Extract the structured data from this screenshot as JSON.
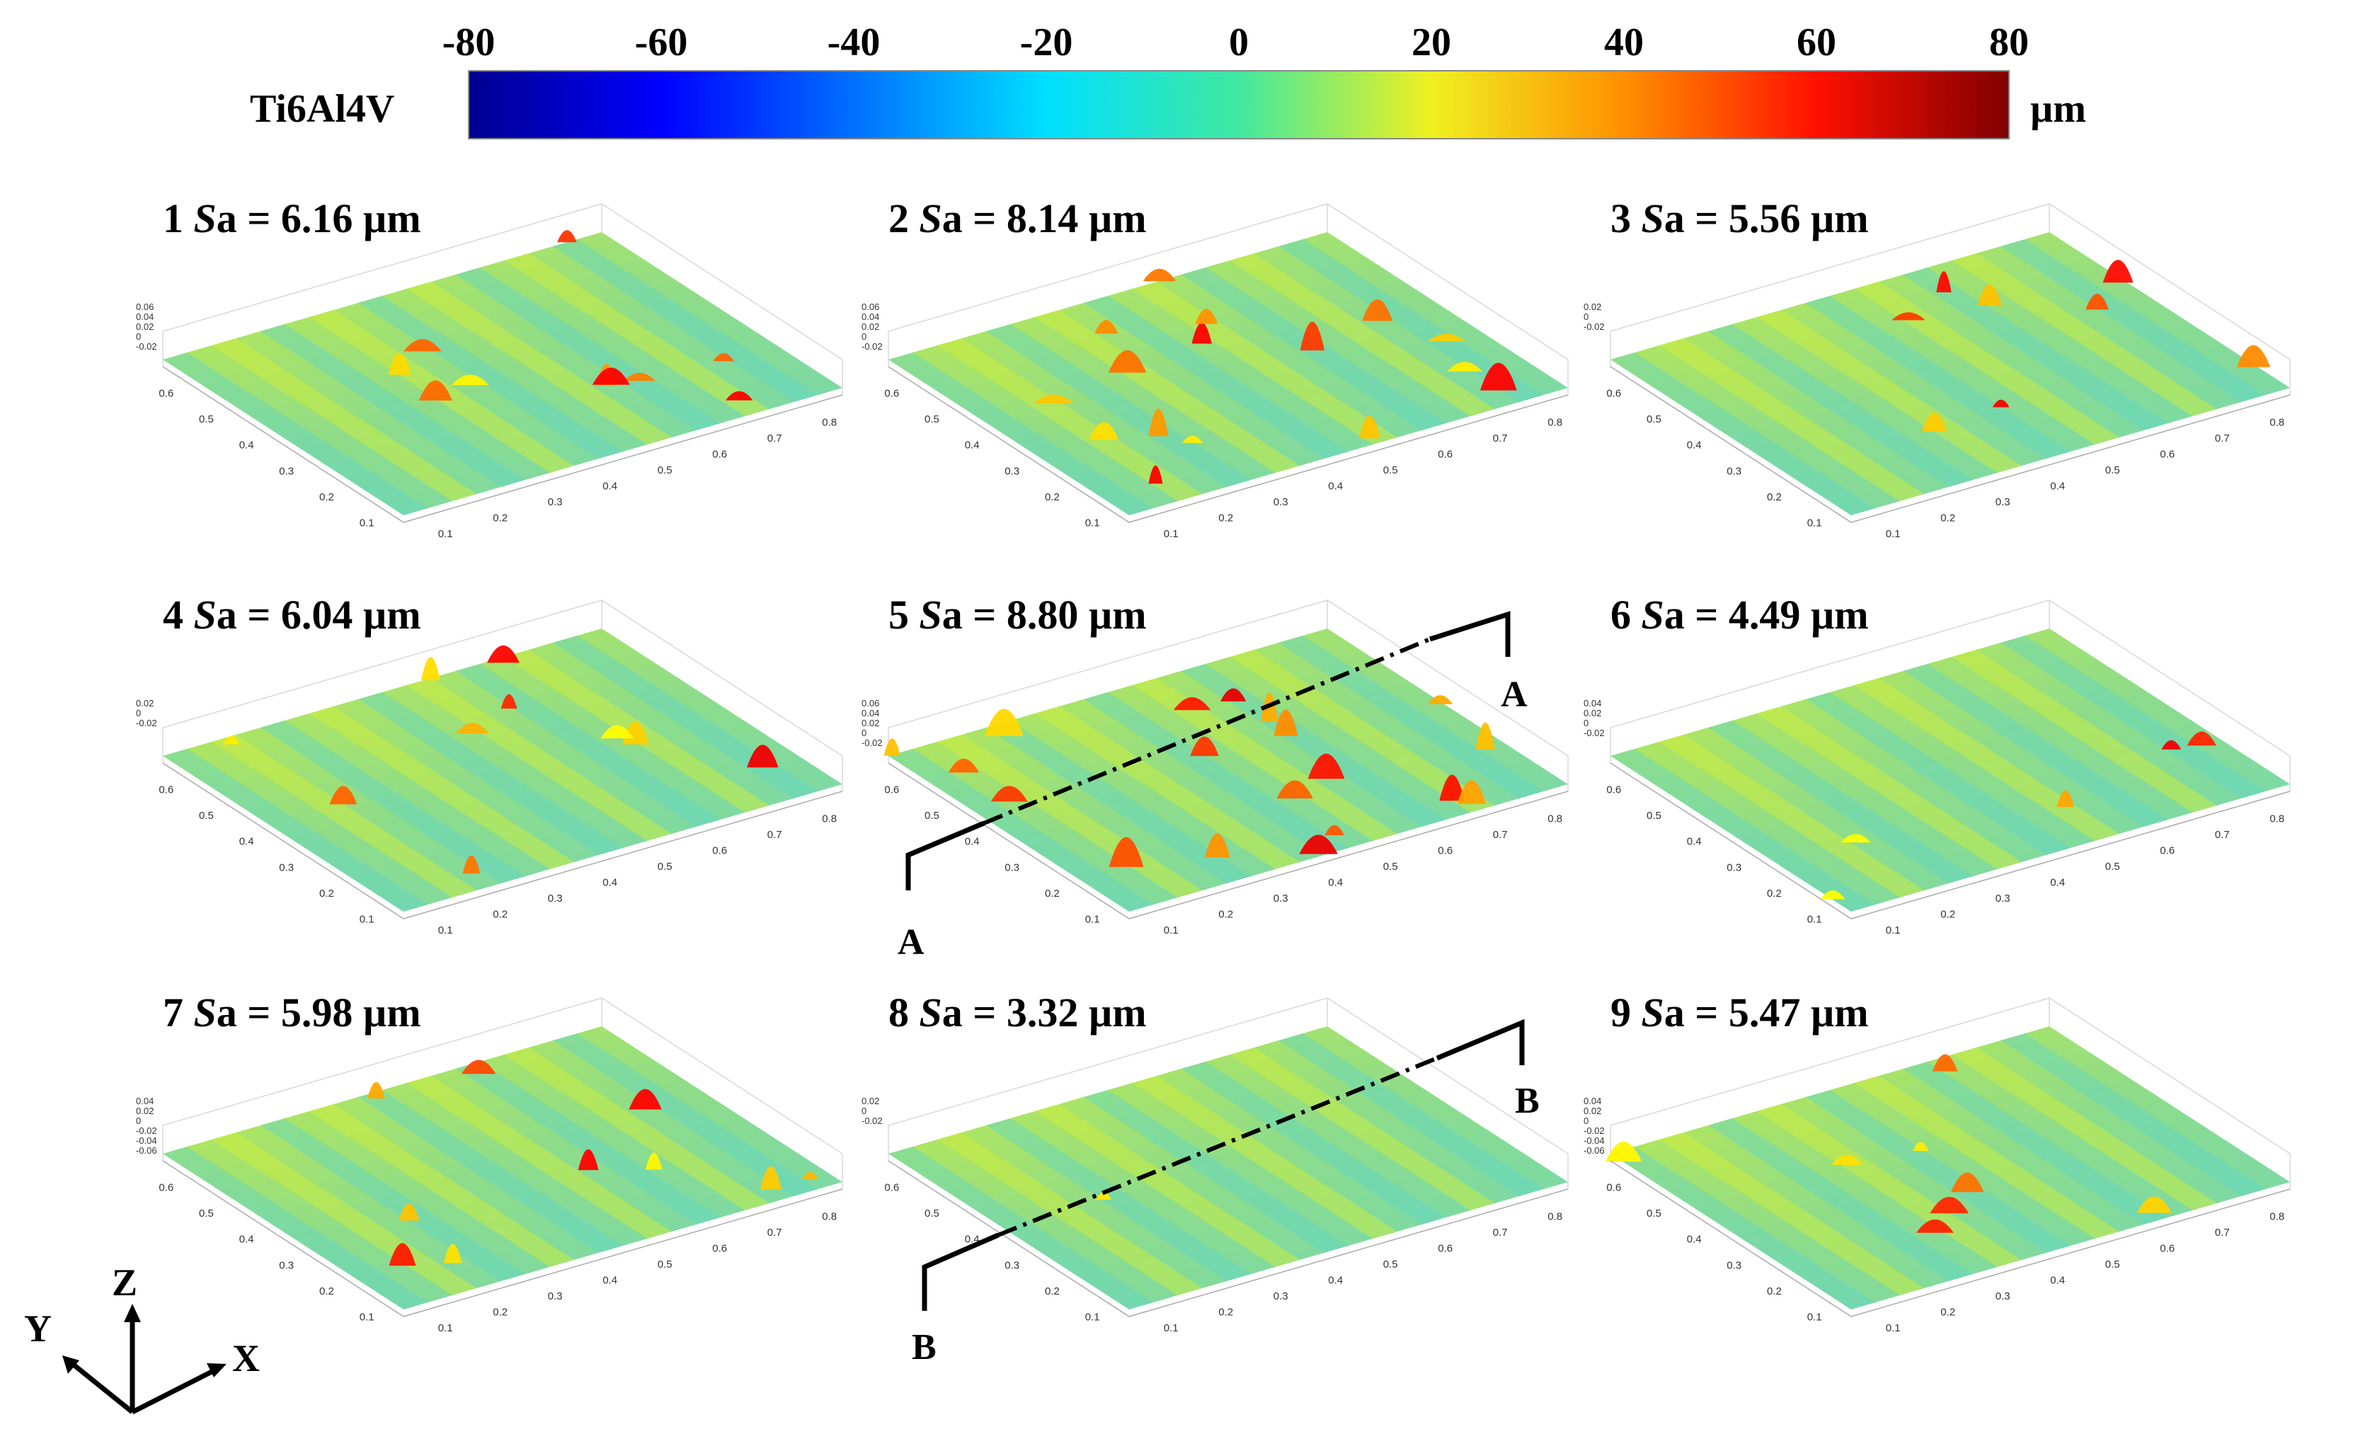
{
  "chart_data": {
    "type": "heatmap",
    "material": "Ti6Al4V",
    "colorbar": {
      "min": -80,
      "max": 80,
      "ticks": [
        -80,
        -60,
        -40,
        -20,
        0,
        20,
        40,
        60,
        80
      ],
      "unit": "µm",
      "colormap": "jet"
    },
    "panels": [
      {
        "id": "1",
        "sa_label": "Sa",
        "sa_value": "= 6.16 µm",
        "sa": 6.16,
        "z_ticks": [
          "0.06",
          "0.04",
          "0.02",
          "0",
          "-0.02"
        ]
      },
      {
        "id": "2",
        "sa_label": "Sa",
        "sa_value": "= 8.14 µm",
        "sa": 8.14,
        "z_ticks": [
          "0.06",
          "0.04",
          "0.02",
          "0",
          "-0.02"
        ]
      },
      {
        "id": "3",
        "sa_label": "Sa",
        "sa_value": "= 5.56 µm",
        "sa": 5.56,
        "z_ticks": [
          "0.02",
          "0",
          "-0.02"
        ]
      },
      {
        "id": "4",
        "sa_label": "Sa",
        "sa_value": "= 6.04 µm",
        "sa": 6.04,
        "z_ticks": [
          "0.02",
          "0",
          "-0.02"
        ]
      },
      {
        "id": "5",
        "sa_label": "Sa",
        "sa_value": "= 8.80 µm",
        "sa": 8.8,
        "z_ticks": [
          "0.06",
          "0.04",
          "0.02",
          "0",
          "-0.02"
        ],
        "section": "A"
      },
      {
        "id": "6",
        "sa_label": "Sa",
        "sa_value": "= 4.49 µm",
        "sa": 4.49,
        "z_ticks": [
          "0.04",
          "0.02",
          "0",
          "-0.02"
        ]
      },
      {
        "id": "7",
        "sa_label": "Sa",
        "sa_value": "= 5.98 µm",
        "sa": 5.98,
        "z_ticks": [
          "0.04",
          "0.02",
          "0",
          "-0.02",
          "-0.04",
          "-0.06"
        ]
      },
      {
        "id": "8",
        "sa_label": "Sa",
        "sa_value": "= 3.32 µm",
        "sa": 3.32,
        "z_ticks": [
          "0.02",
          "0",
          "-0.02"
        ],
        "section": "B"
      },
      {
        "id": "9",
        "sa_label": "Sa",
        "sa_value": "= 5.47 µm",
        "sa": 5.47,
        "z_ticks": [
          "0.04",
          "0.02",
          "0",
          "-0.02",
          "-0.04",
          "-0.06"
        ]
      }
    ],
    "x_ticks": [
      "0.1",
      "0.2",
      "0.3",
      "0.4",
      "0.5",
      "0.6",
      "0.7",
      "0.8"
    ],
    "y_ticks": [
      "0.1",
      "0.2",
      "0.3",
      "0.4",
      "0.5",
      "0.6"
    ],
    "section_labels": {
      "a": "A",
      "b": "B"
    },
    "axes_labels": {
      "x": "X",
      "y": "Y",
      "z": "Z"
    }
  }
}
